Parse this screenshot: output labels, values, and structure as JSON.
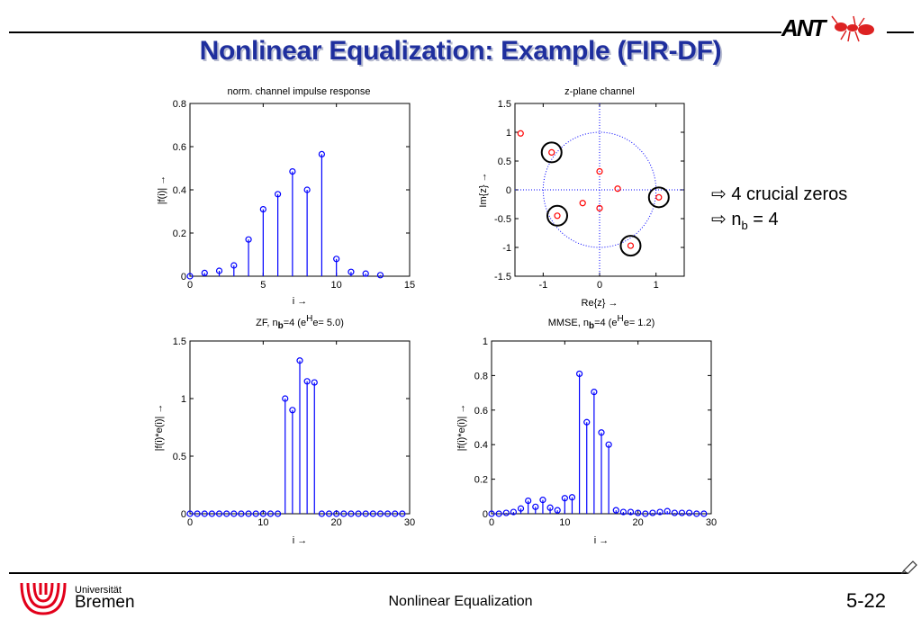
{
  "slide": {
    "title": "Nonlinear Equalization: Example (FIR-DF)",
    "logo_text": "ANT",
    "bullets": [
      "4 crucial zeros",
      "n",
      "b",
      " = 4"
    ],
    "bullet_arrow": "⇨",
    "footer_title": "Nonlinear Equalization",
    "page_number": "5-22",
    "university_word": "Universität",
    "university_name": "Bremen",
    "colors": {
      "title": "#1f2f9e",
      "stem": "#0000ff",
      "zero": "#ff0000",
      "unit_circle": "#0000ff"
    }
  },
  "chart_data": [
    {
      "id": "impulse",
      "type": "stem",
      "title": "norm. channel impulse response",
      "xlabel": "i →",
      "ylabel": "|f(i)|  →",
      "xlim": [
        0,
        15
      ],
      "ylim": [
        0,
        0.8
      ],
      "xticks": [
        0,
        5,
        10,
        15
      ],
      "yticks": [
        0,
        0.2,
        0.4,
        0.6,
        0.8
      ],
      "x": [
        0,
        1,
        2,
        3,
        4,
        5,
        6,
        7,
        8,
        9,
        10,
        11,
        12,
        13
      ],
      "values": [
        0.0,
        0.015,
        0.025,
        0.05,
        0.17,
        0.31,
        0.38,
        0.485,
        0.4,
        0.565,
        0.08,
        0.02,
        0.012,
        0.005
      ]
    },
    {
      "id": "zplane",
      "type": "scatter",
      "title": "z-plane channel",
      "xlabel": "Re{z}  →",
      "ylabel": "Im{z}  →",
      "xlim": [
        -1.5,
        1.5
      ],
      "ylim": [
        -1.5,
        1.5
      ],
      "xticks": [
        -1,
        0,
        1
      ],
      "yticks": [
        -1.5,
        -1,
        -0.5,
        0,
        0.5,
        1,
        1.5
      ],
      "zeros": [
        {
          "re": -1.4,
          "im": 0.98,
          "crucial": false
        },
        {
          "re": -0.85,
          "im": 0.65,
          "crucial": true
        },
        {
          "re": -0.75,
          "im": -0.45,
          "crucial": true
        },
        {
          "re": 1.05,
          "im": -0.13,
          "crucial": true
        },
        {
          "re": 0.55,
          "im": -0.97,
          "crucial": true
        },
        {
          "re": 0.0,
          "im": 0.32,
          "crucial": false
        },
        {
          "re": 0.32,
          "im": 0.02,
          "crucial": false
        },
        {
          "re": -0.3,
          "im": -0.23,
          "crucial": false
        },
        {
          "re": 0.0,
          "im": -0.32,
          "crucial": false
        }
      ]
    },
    {
      "id": "zf",
      "type": "stem",
      "title": "ZF, n",
      "title_sub": "b",
      "title_mid": "=4 (e",
      "title_sup": "H",
      "title_tail": "e= 5.0)",
      "xlabel": "i →",
      "ylabel": "|f(i)*e(i)|  →",
      "xlim": [
        0,
        30
      ],
      "ylim": [
        0,
        1.5
      ],
      "xticks": [
        0,
        10,
        20,
        30
      ],
      "yticks": [
        0,
        0.5,
        1,
        1.5
      ],
      "x": [
        0,
        1,
        2,
        3,
        4,
        5,
        6,
        7,
        8,
        9,
        10,
        11,
        12,
        13,
        14,
        15,
        16,
        17,
        18,
        19,
        20,
        21,
        22,
        23,
        24,
        25,
        26,
        27,
        28,
        29
      ],
      "values": [
        0,
        0,
        0,
        0,
        0,
        0,
        0,
        0,
        0,
        0,
        0,
        0,
        0,
        1.0,
        0.9,
        1.33,
        1.15,
        1.14,
        0,
        0,
        0,
        0,
        0,
        0,
        0,
        0,
        0,
        0,
        0,
        0
      ]
    },
    {
      "id": "mmse",
      "type": "stem",
      "title": "MMSE, n",
      "title_sub": "b",
      "title_mid": "=4   (e",
      "title_sup": "H",
      "title_tail": "e= 1.2)",
      "xlabel": "i →",
      "ylabel": "|f(i)*e(i)|  →",
      "xlim": [
        0,
        30
      ],
      "ylim": [
        0,
        1
      ],
      "xticks": [
        0,
        10,
        20,
        30
      ],
      "yticks": [
        0,
        0.2,
        0.4,
        0.6,
        0.8,
        1
      ],
      "x": [
        0,
        1,
        2,
        3,
        4,
        5,
        6,
        7,
        8,
        9,
        10,
        11,
        12,
        13,
        14,
        15,
        16,
        17,
        18,
        19,
        20,
        21,
        22,
        23,
        24,
        25,
        26,
        27,
        28,
        29
      ],
      "values": [
        0.0,
        0.0,
        0.005,
        0.01,
        0.03,
        0.075,
        0.04,
        0.08,
        0.035,
        0.02,
        0.09,
        0.095,
        0.81,
        0.53,
        0.705,
        0.47,
        0.4,
        0.02,
        0.01,
        0.01,
        0.005,
        0.0,
        0.005,
        0.01,
        0.015,
        0.005,
        0.005,
        0.005,
        0.0,
        0.0
      ]
    }
  ]
}
